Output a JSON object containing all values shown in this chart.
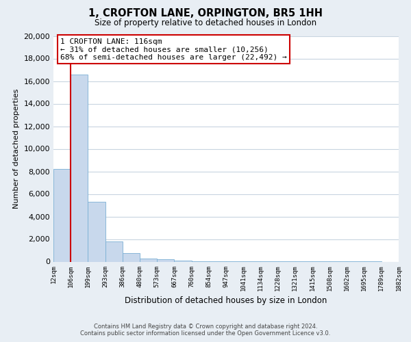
{
  "title": "1, CROFTON LANE, ORPINGTON, BR5 1HH",
  "subtitle": "Size of property relative to detached houses in London",
  "xlabel": "Distribution of detached houses by size in London",
  "ylabel": "Number of detached properties",
  "bar_heights": [
    8200,
    16600,
    5300,
    1800,
    750,
    300,
    200,
    100,
    50,
    30,
    20,
    10,
    10,
    5,
    5,
    5,
    5,
    5,
    5,
    0
  ],
  "categories": [
    "12sqm",
    "106sqm",
    "199sqm",
    "293sqm",
    "386sqm",
    "480sqm",
    "573sqm",
    "667sqm",
    "760sqm",
    "854sqm",
    "947sqm",
    "1041sqm",
    "1134sqm",
    "1228sqm",
    "1321sqm",
    "1415sqm",
    "1508sqm",
    "1602sqm",
    "1695sqm",
    "1789sqm",
    "1882sqm"
  ],
  "bar_color": "#c8d8ec",
  "bar_edge_color": "#7aafd4",
  "ylim": [
    0,
    20000
  ],
  "yticks": [
    0,
    2000,
    4000,
    6000,
    8000,
    10000,
    12000,
    14000,
    16000,
    18000,
    20000
  ],
  "annotation_line1": "1 CROFTON LANE: 116sqm",
  "annotation_line2": "← 31% of detached houses are smaller (10,256)",
  "annotation_line3": "68% of semi-detached houses are larger (22,492) →",
  "red_line_index": 1,
  "footer_line1": "Contains HM Land Registry data © Crown copyright and database right 2024.",
  "footer_line2": "Contains public sector information licensed under the Open Government Licence v3.0.",
  "background_color": "#e8eef4",
  "plot_bg_color": "#ffffff",
  "grid_color": "#c8d4e0",
  "red_line_color": "#cc0000"
}
